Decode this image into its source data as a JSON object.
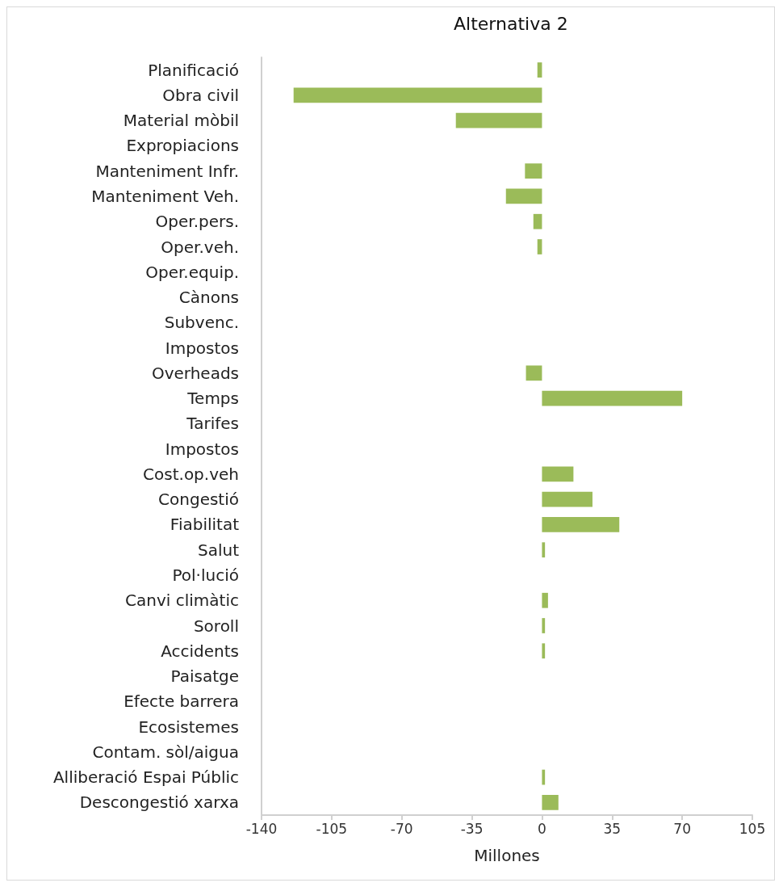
{
  "chart_data": {
    "type": "bar",
    "orientation": "horizontal",
    "title": "Alternativa 2",
    "xlabel": "Millones",
    "categories": [
      "Planificació",
      "Obra civil",
      "Material mòbil",
      "Expropiacions",
      "Manteniment Infr.",
      "Manteniment Veh.",
      "Oper.pers.",
      "Oper.veh.",
      "Oper.equip.",
      "Cànons",
      "Subvenc.",
      "Impostos",
      "Overheads",
      "Temps",
      "Tarifes",
      "Impostos",
      "Cost.op.veh",
      "Congestió",
      "Fiabilitat",
      "Salut",
      "Pol·lució",
      "Canvi climàtic",
      "Soroll",
      "Accidents",
      "Paisatge",
      "Efecte barrera",
      "Ecosistemes",
      "Contam. sòl/aigua",
      "Alliberació Espai Públic",
      "Descongestió xarxa"
    ],
    "values": [
      -2.3,
      -124,
      -43,
      null,
      -8.5,
      -18,
      -4.3,
      -2.3,
      null,
      null,
      null,
      null,
      -8,
      70,
      null,
      null,
      15.7,
      25.2,
      38.6,
      1.5,
      null,
      3,
      1.5,
      1.5,
      null,
      null,
      null,
      null,
      1.5,
      8.2
    ],
    "color": "#9bbb59",
    "xlim": [
      -140,
      105
    ],
    "xticks": [
      -140,
      -105,
      -70,
      -35,
      0,
      35,
      70,
      105
    ],
    "grid": false
  }
}
